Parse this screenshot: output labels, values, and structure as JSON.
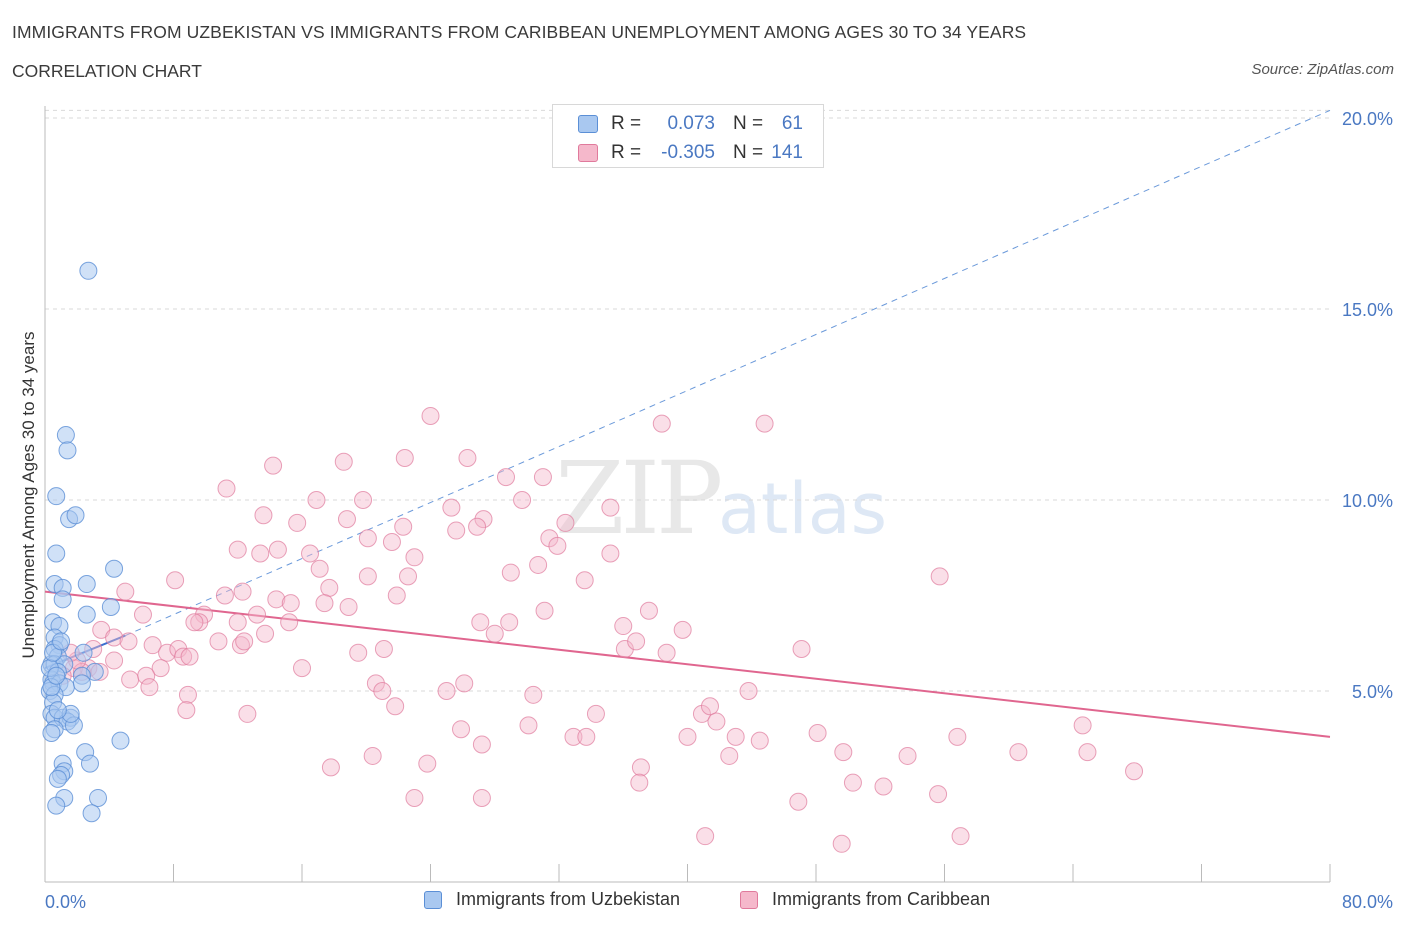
{
  "header": {
    "title": "IMMIGRANTS FROM UZBEKISTAN VS IMMIGRANTS FROM CARIBBEAN UNEMPLOYMENT AMONG AGES 30 TO 34 YEARS",
    "subtitle": "CORRELATION CHART",
    "source": "Source: ZipAtlas.com"
  },
  "watermark": {
    "zip": "ZIP",
    "atlas": "atlas"
  },
  "stats": {
    "rows": [
      {
        "r_label": "R =",
        "r_value": "0.073",
        "n_label": "N =",
        "n_value": "61",
        "color": "#a9c8f0"
      },
      {
        "r_label": "R =",
        "r_value": "-0.305",
        "n_label": "N =",
        "n_value": "141",
        "color": "#f5b8cb"
      }
    ]
  },
  "legend": {
    "items": [
      {
        "label": "Immigrants from Uzbekistan",
        "color": "#a9c8f0"
      },
      {
        "label": "Immigrants from Caribbean",
        "color": "#f5b8cb"
      }
    ]
  },
  "colors": {
    "blue_fill": "#a9c8f0",
    "blue_stroke": "#5b8fd6",
    "blue_line": "#3a6fd0",
    "pink_fill": "#f5b8cb",
    "pink_stroke": "#e07a9c",
    "pink_line": "#e0668f",
    "grid": "#d9d9d9",
    "tick_label": "#4a78c2"
  },
  "chart_data": {
    "type": "scatter",
    "ylabel": "Unemployment Among Ages 30 to 34 years",
    "xlabel": "",
    "xlim": [
      0,
      80
    ],
    "ylim": [
      0,
      20
    ],
    "x_tick_labels": [
      "0.0%",
      "80.0%"
    ],
    "y_ticks": [
      5,
      10,
      15,
      20
    ],
    "y_tick_labels": [
      "5.0%",
      "10.0%",
      "15.0%",
      "20.0%"
    ],
    "grid": "horizontal dashed",
    "series": [
      {
        "name": "Immigrants from Uzbekistan",
        "points": [
          [
            2.7,
            16.0
          ],
          [
            1.3,
            11.7
          ],
          [
            1.4,
            11.3
          ],
          [
            0.7,
            10.1
          ],
          [
            1.5,
            9.5
          ],
          [
            1.9,
            9.6
          ],
          [
            0.7,
            8.6
          ],
          [
            4.3,
            8.2
          ],
          [
            0.6,
            7.8
          ],
          [
            1.1,
            7.7
          ],
          [
            2.6,
            7.8
          ],
          [
            1.1,
            7.4
          ],
          [
            4.1,
            7.2
          ],
          [
            2.6,
            7.0
          ],
          [
            0.5,
            6.8
          ],
          [
            0.9,
            6.7
          ],
          [
            0.6,
            6.4
          ],
          [
            0.9,
            6.2
          ],
          [
            0.6,
            6.1
          ],
          [
            0.8,
            5.9
          ],
          [
            2.4,
            6.0
          ],
          [
            0.4,
            5.7
          ],
          [
            0.6,
            5.7
          ],
          [
            1.2,
            5.7
          ],
          [
            0.8,
            5.5
          ],
          [
            3.1,
            5.5
          ],
          [
            2.3,
            5.4
          ],
          [
            0.4,
            5.3
          ],
          [
            0.5,
            5.2
          ],
          [
            0.9,
            5.2
          ],
          [
            1.3,
            5.1
          ],
          [
            2.3,
            5.2
          ],
          [
            0.3,
            5.0
          ],
          [
            0.6,
            4.9
          ],
          [
            0.5,
            4.7
          ],
          [
            0.4,
            4.4
          ],
          [
            0.6,
            4.3
          ],
          [
            1.1,
            4.3
          ],
          [
            1.6,
            4.3
          ],
          [
            1.4,
            4.2
          ],
          [
            0.6,
            4.0
          ],
          [
            1.8,
            4.1
          ],
          [
            0.4,
            3.9
          ],
          [
            4.7,
            3.7
          ],
          [
            2.5,
            3.4
          ],
          [
            1.1,
            3.1
          ],
          [
            1.2,
            2.9
          ],
          [
            2.8,
            3.1
          ],
          [
            1.0,
            2.8
          ],
          [
            0.8,
            2.7
          ],
          [
            1.2,
            2.2
          ],
          [
            3.3,
            2.2
          ],
          [
            0.7,
            2.0
          ],
          [
            2.9,
            1.8
          ],
          [
            0.3,
            5.6
          ],
          [
            0.5,
            6.0
          ],
          [
            1.6,
            4.4
          ],
          [
            0.8,
            4.5
          ],
          [
            0.4,
            5.1
          ],
          [
            1.0,
            6.3
          ],
          [
            0.7,
            5.4
          ]
        ]
      },
      {
        "name": "Immigrants from Caribbean",
        "points": [
          [
            24.0,
            12.2
          ],
          [
            38.4,
            12.0
          ],
          [
            44.8,
            12.0
          ],
          [
            14.2,
            10.9
          ],
          [
            18.6,
            11.0
          ],
          [
            22.4,
            11.1
          ],
          [
            26.3,
            11.1
          ],
          [
            28.7,
            10.6
          ],
          [
            31.0,
            10.6
          ],
          [
            11.3,
            10.3
          ],
          [
            19.8,
            10.0
          ],
          [
            16.9,
            10.0
          ],
          [
            25.3,
            9.8
          ],
          [
            29.7,
            10.0
          ],
          [
            13.6,
            9.6
          ],
          [
            18.8,
            9.5
          ],
          [
            22.3,
            9.3
          ],
          [
            27.3,
            9.5
          ],
          [
            26.9,
            9.3
          ],
          [
            35.2,
            9.8
          ],
          [
            32.4,
            9.4
          ],
          [
            15.7,
            9.4
          ],
          [
            25.6,
            9.2
          ],
          [
            20.1,
            9.0
          ],
          [
            21.6,
            8.9
          ],
          [
            31.4,
            9.0
          ],
          [
            31.9,
            8.8
          ],
          [
            12.0,
            8.7
          ],
          [
            13.4,
            8.6
          ],
          [
            14.5,
            8.7
          ],
          [
            16.5,
            8.6
          ],
          [
            23.0,
            8.5
          ],
          [
            29.0,
            8.1
          ],
          [
            30.7,
            8.3
          ],
          [
            20.1,
            8.0
          ],
          [
            22.6,
            8.0
          ],
          [
            17.1,
            8.2
          ],
          [
            8.1,
            7.9
          ],
          [
            33.6,
            7.9
          ],
          [
            55.7,
            8.0
          ],
          [
            17.7,
            7.7
          ],
          [
            11.2,
            7.5
          ],
          [
            12.3,
            7.6
          ],
          [
            17.4,
            7.3
          ],
          [
            21.9,
            7.5
          ],
          [
            14.4,
            7.4
          ],
          [
            5.0,
            7.6
          ],
          [
            15.3,
            7.3
          ],
          [
            6.1,
            7.0
          ],
          [
            9.9,
            7.0
          ],
          [
            13.2,
            7.0
          ],
          [
            31.1,
            7.1
          ],
          [
            37.6,
            7.1
          ],
          [
            9.6,
            6.8
          ],
          [
            12.0,
            6.8
          ],
          [
            15.2,
            6.8
          ],
          [
            27.1,
            6.8
          ],
          [
            28.9,
            6.8
          ],
          [
            36.0,
            6.7
          ],
          [
            39.7,
            6.6
          ],
          [
            3.5,
            6.6
          ],
          [
            4.3,
            6.4
          ],
          [
            5.2,
            6.3
          ],
          [
            3.0,
            6.1
          ],
          [
            6.7,
            6.2
          ],
          [
            7.6,
            6.0
          ],
          [
            8.3,
            6.1
          ],
          [
            12.2,
            6.2
          ],
          [
            12.4,
            6.3
          ],
          [
            36.1,
            6.1
          ],
          [
            36.8,
            6.3
          ],
          [
            38.7,
            6.0
          ],
          [
            47.1,
            6.1
          ],
          [
            21.1,
            6.1
          ],
          [
            19.5,
            6.0
          ],
          [
            8.6,
            5.9
          ],
          [
            4.3,
            5.8
          ],
          [
            7.2,
            5.6
          ],
          [
            9.0,
            5.9
          ],
          [
            2.7,
            5.6
          ],
          [
            1.8,
            5.6
          ],
          [
            2.3,
            5.5
          ],
          [
            3.4,
            5.5
          ],
          [
            1.1,
            5.4
          ],
          [
            16.0,
            5.6
          ],
          [
            5.3,
            5.3
          ],
          [
            6.3,
            5.4
          ],
          [
            26.1,
            5.2
          ],
          [
            20.6,
            5.2
          ],
          [
            21.0,
            5.0
          ],
          [
            25.0,
            5.0
          ],
          [
            30.4,
            4.9
          ],
          [
            43.8,
            5.0
          ],
          [
            8.9,
            4.9
          ],
          [
            8.8,
            4.5
          ],
          [
            21.8,
            4.6
          ],
          [
            34.3,
            4.4
          ],
          [
            40.9,
            4.4
          ],
          [
            41.4,
            4.6
          ],
          [
            41.8,
            4.2
          ],
          [
            12.6,
            4.4
          ],
          [
            25.9,
            4.0
          ],
          [
            32.9,
            3.8
          ],
          [
            33.7,
            3.8
          ],
          [
            40.0,
            3.8
          ],
          [
            43.0,
            3.8
          ],
          [
            48.1,
            3.9
          ],
          [
            56.8,
            3.8
          ],
          [
            64.6,
            4.1
          ],
          [
            27.2,
            3.6
          ],
          [
            42.6,
            3.3
          ],
          [
            49.7,
            3.4
          ],
          [
            53.7,
            3.3
          ],
          [
            60.6,
            3.4
          ],
          [
            64.9,
            3.4
          ],
          [
            20.4,
            3.3
          ],
          [
            23.8,
            3.1
          ],
          [
            17.8,
            3.0
          ],
          [
            37.1,
            3.0
          ],
          [
            67.8,
            2.9
          ],
          [
            37.0,
            2.6
          ],
          [
            50.3,
            2.6
          ],
          [
            52.2,
            2.5
          ],
          [
            23.0,
            2.2
          ],
          [
            27.2,
            2.2
          ],
          [
            55.6,
            2.3
          ],
          [
            46.9,
            2.1
          ],
          [
            41.1,
            1.2
          ],
          [
            49.6,
            1.0
          ],
          [
            57.0,
            1.2
          ],
          [
            35.2,
            8.6
          ],
          [
            9.3,
            6.8
          ],
          [
            2.0,
            5.8
          ],
          [
            30.1,
            4.1
          ],
          [
            6.5,
            5.1
          ],
          [
            44.5,
            3.7
          ],
          [
            1.6,
            6.0
          ],
          [
            10.8,
            6.3
          ],
          [
            18.9,
            7.2
          ],
          [
            28.0,
            6.5
          ],
          [
            13.7,
            6.5
          ]
        ]
      }
    ],
    "trend_lines": [
      {
        "series": "Immigrants from Uzbekistan",
        "solid": [
          [
            0,
            5.6
          ],
          [
            5,
            6.45
          ]
        ],
        "dashed_to": [
          80,
          20.2
        ]
      },
      {
        "series": "Immigrants from Caribbean",
        "solid": [
          [
            0,
            7.6
          ],
          [
            80,
            3.8
          ]
        ]
      }
    ]
  }
}
